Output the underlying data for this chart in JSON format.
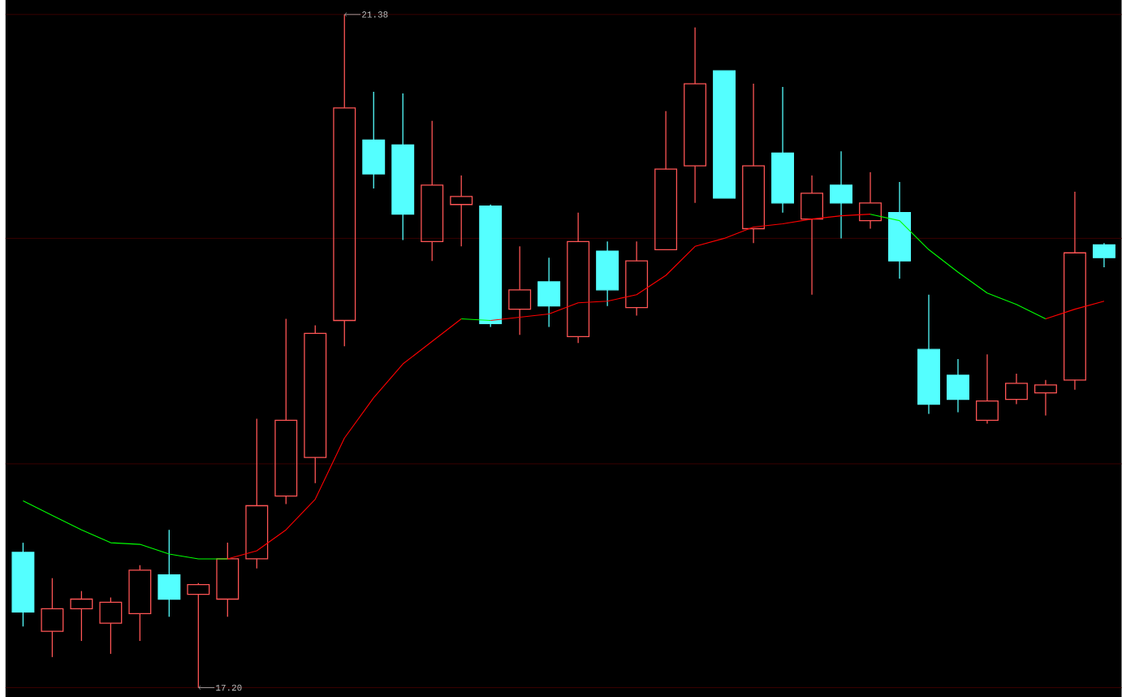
{
  "chart_data": {
    "type": "candlestick",
    "categories": [
      null,
      null,
      null,
      null,
      null,
      null,
      null,
      null,
      null,
      null,
      null,
      null,
      null,
      null,
      null,
      null,
      null,
      null,
      null,
      null,
      null,
      null,
      null,
      null,
      null,
      null,
      null,
      null,
      null,
      null,
      null,
      null,
      null,
      null,
      null,
      null,
      null,
      null
    ],
    "ohlc": [
      [
        18.04,
        18.1,
        17.58,
        17.67
      ],
      [
        17.55,
        17.88,
        17.39,
        17.69
      ],
      [
        17.69,
        17.8,
        17.49,
        17.75
      ],
      [
        17.6,
        17.76,
        17.41,
        17.73
      ],
      [
        17.66,
        17.96,
        17.49,
        17.93
      ],
      [
        17.9,
        18.18,
        17.64,
        17.75
      ],
      [
        17.78,
        17.85,
        17.2,
        17.84
      ],
      [
        17.75,
        18.1,
        17.64,
        18.0
      ],
      [
        18.0,
        18.87,
        17.94,
        18.33
      ],
      [
        18.39,
        19.49,
        18.34,
        18.86
      ],
      [
        18.63,
        19.45,
        18.47,
        19.4
      ],
      [
        19.48,
        21.38,
        19.32,
        20.8
      ],
      [
        20.6,
        20.9,
        20.3,
        20.39
      ],
      [
        20.57,
        20.89,
        19.98,
        20.14
      ],
      [
        19.97,
        20.72,
        19.85,
        20.32
      ],
      [
        20.2,
        20.38,
        19.94,
        20.25
      ],
      [
        20.19,
        20.2,
        19.44,
        19.46
      ],
      [
        19.55,
        19.94,
        19.39,
        19.67
      ],
      [
        19.72,
        19.87,
        19.44,
        19.57
      ],
      [
        19.38,
        20.15,
        19.34,
        19.97
      ],
      [
        19.91,
        19.97,
        19.57,
        19.67
      ],
      [
        19.56,
        19.97,
        19.51,
        19.85
      ],
      [
        19.92,
        20.78,
        19.92,
        20.42
      ],
      [
        20.44,
        21.3,
        20.21,
        20.95
      ],
      [
        21.03,
        21.03,
        20.24,
        20.24
      ],
      [
        20.05,
        20.95,
        19.96,
        20.44
      ],
      [
        20.52,
        20.93,
        20.15,
        20.21
      ],
      [
        20.11,
        20.38,
        19.64,
        20.27
      ],
      [
        20.32,
        20.53,
        19.99,
        20.21
      ],
      [
        20.1,
        20.4,
        20.05,
        20.21
      ],
      [
        20.15,
        20.34,
        19.74,
        19.85
      ],
      [
        19.3,
        19.64,
        18.9,
        18.96
      ],
      [
        19.14,
        19.24,
        18.91,
        18.99
      ],
      [
        18.86,
        19.27,
        18.84,
        18.98
      ],
      [
        18.99,
        19.15,
        18.96,
        19.09
      ],
      [
        19.03,
        19.11,
        18.89,
        19.08
      ],
      [
        19.11,
        20.28,
        19.05,
        19.9
      ],
      [
        19.95,
        19.96,
        19.81,
        19.87
      ]
    ],
    "colors": [
      "#54ffff",
      "#ff5555",
      "#ff5555",
      "#ff5555",
      "#ff5555",
      "#54ffff",
      "#ff5555",
      "#ff5555",
      "#ff5555",
      "#ff5555",
      "#ff5555",
      "#ff5555",
      "#54ffff",
      "#54ffff",
      "#ff5555",
      "#ff5555",
      "#54ffff",
      "#ff5555",
      "#54ffff",
      "#ff5555",
      "#54ffff",
      "#ff5555",
      "#ff5555",
      "#ff5555",
      "#54ffff",
      "#ff5555",
      "#54ffff",
      "#ff5555",
      "#54ffff",
      "#ff5555",
      "#54ffff",
      "#54ffff",
      "#54ffff",
      "#ff5555",
      "#ff5555",
      "#ff5555",
      "#ff5555",
      "#54ffff"
    ],
    "series": [
      {
        "type": "line",
        "color": "#00ff00",
        "values": [
          18.36,
          18.27,
          18.18,
          18.1,
          18.09,
          18.03,
          18.0,
          18.0,
          null,
          null,
          null,
          null,
          null,
          null,
          null,
          19.49,
          19.48,
          null,
          null,
          null,
          null,
          null,
          null,
          null,
          null,
          null,
          null,
          null,
          null,
          20.14,
          20.1,
          19.92,
          19.78,
          19.65,
          19.58,
          19.49,
          null,
          null
        ]
      },
      {
        "type": "line",
        "color": "#ff0000",
        "values": [
          null,
          null,
          null,
          null,
          null,
          null,
          null,
          18.0,
          18.05,
          18.18,
          18.37,
          18.75,
          19.0,
          19.21,
          19.35,
          19.49,
          null,
          null,
          null,
          null,
          null,
          null,
          null,
          null,
          null,
          null,
          null,
          null,
          null,
          null,
          null,
          null,
          null,
          null,
          null,
          19.49,
          19.55,
          19.6
        ]
      },
      {
        "type": "line",
        "color": "#ff0000",
        "values": [
          null,
          null,
          null,
          null,
          null,
          null,
          null,
          null,
          null,
          null,
          null,
          null,
          null,
          null,
          null,
          null,
          19.48,
          19.5,
          19.52,
          19.59,
          19.6,
          19.64,
          19.76,
          19.94,
          19.99,
          20.06,
          20.08,
          20.11,
          20.13,
          20.14,
          null,
          null,
          null,
          null,
          null,
          null,
          null,
          null
        ]
      }
    ],
    "ylim": [
      17.14,
      21.47
    ],
    "yticks": [
      {
        "value": 17.2,
        "label": null
      },
      {
        "value": 18.59,
        "label": null
      },
      {
        "value": 19.99,
        "label": null
      },
      {
        "value": 21.38,
        "label": null
      }
    ],
    "grid": "y",
    "annotations": [
      "21.38",
      "17.20"
    ]
  }
}
